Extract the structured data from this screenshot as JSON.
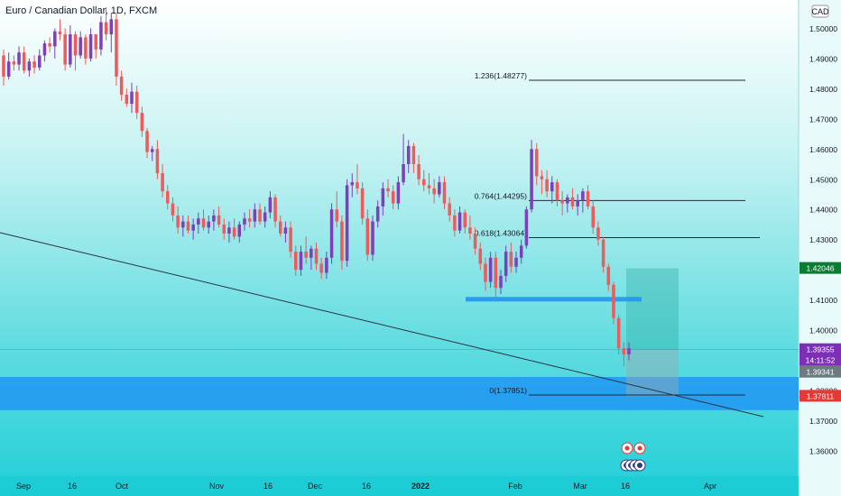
{
  "chart_data": {
    "type": "candlestick",
    "title": "Euro / Canadian Dollar, 1D, FXCM",
    "currency": "CAD",
    "ylim": [
      1.354,
      1.514
    ],
    "y_ticks": [
      "1.50000",
      "1.49000",
      "1.48000",
      "1.47000",
      "1.46000",
      "1.45000",
      "1.44000",
      "1.43000",
      "1.42000",
      "1.41000",
      "1.40000",
      "1.39000",
      "1.38000",
      "1.37000",
      "1.36000"
    ],
    "x_ticks": [
      "Sep",
      "16",
      "Oct",
      "Nov",
      "16",
      "Dec",
      "16",
      "2022",
      "Feb",
      "Mar",
      "16",
      "Apr"
    ],
    "price_labels": {
      "current": "1.39355",
      "countdown": "14:11:52",
      "prev": "1.39341",
      "high_marker": "1.42046",
      "low_marker": "1.37811"
    },
    "colors": {
      "up": "#7e3fb8",
      "down": "#ef5a5a",
      "accent_blue": "#2196f3"
    },
    "fib_levels": [
      {
        "label": "1.236(1.48277)",
        "value": 1.48277
      },
      {
        "label": "0.764(1.44295)",
        "value": 1.44295
      },
      {
        "label": "0.618(1.43064)",
        "value": 1.43064
      },
      {
        "label": "0(1.37851)",
        "value": 1.37851
      }
    ],
    "candles": [
      [
        1.491,
        1.493,
        1.481,
        1.484
      ],
      [
        1.484,
        1.492,
        1.483,
        1.489
      ],
      [
        1.489,
        1.491,
        1.486,
        1.488
      ],
      [
        1.488,
        1.494,
        1.486,
        1.492
      ],
      [
        1.492,
        1.494,
        1.485,
        1.486
      ],
      [
        1.486,
        1.49,
        1.484,
        1.489
      ],
      [
        1.489,
        1.491,
        1.485,
        1.487
      ],
      [
        1.487,
        1.493,
        1.486,
        1.491
      ],
      [
        1.491,
        1.496,
        1.489,
        1.495
      ],
      [
        1.495,
        1.497,
        1.492,
        1.494
      ],
      [
        1.494,
        1.5,
        1.49,
        1.499
      ],
      [
        1.499,
        1.503,
        1.496,
        1.498
      ],
      [
        1.498,
        1.5,
        1.486,
        1.488
      ],
      [
        1.488,
        1.501,
        1.487,
        1.498
      ],
      [
        1.498,
        1.499,
        1.486,
        1.491
      ],
      [
        1.491,
        1.499,
        1.49,
        1.497
      ],
      [
        1.497,
        1.498,
        1.488,
        1.49
      ],
      [
        1.49,
        1.5,
        1.489,
        1.498
      ],
      [
        1.498,
        1.498,
        1.49,
        1.493
      ],
      [
        1.493,
        1.504,
        1.491,
        1.502
      ],
      [
        1.502,
        1.507,
        1.496,
        1.498
      ],
      [
        1.498,
        1.505,
        1.492,
        1.503
      ],
      [
        1.503,
        1.505,
        1.481,
        1.484
      ],
      [
        1.484,
        1.486,
        1.476,
        1.478
      ],
      [
        1.478,
        1.48,
        1.474,
        1.475
      ],
      [
        1.475,
        1.482,
        1.472,
        1.479
      ],
      [
        1.479,
        1.481,
        1.47,
        1.472
      ],
      [
        1.472,
        1.474,
        1.464,
        1.466
      ],
      [
        1.466,
        1.467,
        1.457,
        1.459
      ],
      [
        1.459,
        1.461,
        1.456,
        1.46
      ],
      [
        1.46,
        1.463,
        1.45,
        1.452
      ],
      [
        1.452,
        1.455,
        1.444,
        1.446
      ],
      [
        1.446,
        1.448,
        1.44,
        1.442
      ],
      [
        1.442,
        1.444,
        1.436,
        1.438
      ],
      [
        1.438,
        1.441,
        1.432,
        1.434
      ],
      [
        1.434,
        1.438,
        1.431,
        1.436
      ],
      [
        1.436,
        1.438,
        1.432,
        1.433
      ],
      [
        1.433,
        1.437,
        1.43,
        1.435
      ],
      [
        1.435,
        1.439,
        1.432,
        1.437
      ],
      [
        1.437,
        1.44,
        1.433,
        1.434
      ],
      [
        1.434,
        1.438,
        1.432,
        1.436
      ],
      [
        1.436,
        1.44,
        1.433,
        1.438
      ],
      [
        1.438,
        1.441,
        1.434,
        1.435
      ],
      [
        1.435,
        1.437,
        1.43,
        1.432
      ],
      [
        1.432,
        1.436,
        1.429,
        1.434
      ],
      [
        1.434,
        1.437,
        1.43,
        1.431
      ],
      [
        1.431,
        1.436,
        1.429,
        1.435
      ],
      [
        1.435,
        1.439,
        1.433,
        1.437
      ],
      [
        1.437,
        1.44,
        1.434,
        1.436
      ],
      [
        1.436,
        1.442,
        1.434,
        1.44
      ],
      [
        1.44,
        1.442,
        1.435,
        1.436
      ],
      [
        1.436,
        1.441,
        1.434,
        1.439
      ],
      [
        1.439,
        1.446,
        1.437,
        1.444
      ],
      [
        1.444,
        1.445,
        1.434,
        1.436
      ],
      [
        1.436,
        1.438,
        1.431,
        1.432
      ],
      [
        1.432,
        1.436,
        1.429,
        1.434
      ],
      [
        1.434,
        1.436,
        1.424,
        1.426
      ],
      [
        1.426,
        1.428,
        1.418,
        1.42
      ],
      [
        1.42,
        1.428,
        1.418,
        1.426
      ],
      [
        1.426,
        1.431,
        1.422,
        1.424
      ],
      [
        1.424,
        1.428,
        1.42,
        1.427
      ],
      [
        1.427,
        1.429,
        1.42,
        1.422
      ],
      [
        1.422,
        1.424,
        1.417,
        1.419
      ],
      [
        1.419,
        1.426,
        1.417,
        1.424
      ],
      [
        1.424,
        1.442,
        1.422,
        1.44
      ],
      [
        1.44,
        1.446,
        1.434,
        1.436
      ],
      [
        1.436,
        1.438,
        1.42,
        1.423
      ],
      [
        1.423,
        1.45,
        1.421,
        1.448
      ],
      [
        1.448,
        1.452,
        1.444,
        1.449
      ],
      [
        1.449,
        1.455,
        1.445,
        1.447
      ],
      [
        1.447,
        1.449,
        1.435,
        1.437
      ],
      [
        1.437,
        1.44,
        1.423,
        1.425
      ],
      [
        1.425,
        1.438,
        1.423,
        1.436
      ],
      [
        1.436,
        1.443,
        1.434,
        1.441
      ],
      [
        1.441,
        1.449,
        1.438,
        1.447
      ],
      [
        1.447,
        1.45,
        1.444,
        1.446
      ],
      [
        1.446,
        1.448,
        1.44,
        1.442
      ],
      [
        1.442,
        1.451,
        1.44,
        1.449
      ],
      [
        1.449,
        1.465,
        1.448,
        1.455
      ],
      [
        1.455,
        1.463,
        1.452,
        1.461
      ],
      [
        1.461,
        1.462,
        1.452,
        1.455
      ],
      [
        1.455,
        1.458,
        1.448,
        1.45
      ],
      [
        1.45,
        1.453,
        1.446,
        1.448
      ],
      [
        1.448,
        1.452,
        1.445,
        1.447
      ],
      [
        1.447,
        1.45,
        1.442,
        1.445
      ],
      [
        1.445,
        1.451,
        1.444,
        1.449
      ],
      [
        1.449,
        1.451,
        1.44,
        1.442
      ],
      [
        1.442,
        1.444,
        1.436,
        1.438
      ],
      [
        1.438,
        1.44,
        1.431,
        1.433
      ],
      [
        1.433,
        1.441,
        1.432,
        1.439
      ],
      [
        1.439,
        1.44,
        1.432,
        1.434
      ],
      [
        1.434,
        1.438,
        1.43,
        1.432
      ],
      [
        1.432,
        1.434,
        1.425,
        1.427
      ],
      [
        1.427,
        1.429,
        1.42,
        1.422
      ],
      [
        1.422,
        1.424,
        1.413,
        1.416
      ],
      [
        1.416,
        1.426,
        1.414,
        1.424
      ],
      [
        1.424,
        1.426,
        1.411,
        1.414
      ],
      [
        1.414,
        1.42,
        1.412,
        1.418
      ],
      [
        1.418,
        1.428,
        1.416,
        1.426
      ],
      [
        1.426,
        1.429,
        1.419,
        1.421
      ],
      [
        1.421,
        1.426,
        1.419,
        1.424
      ],
      [
        1.424,
        1.43,
        1.422,
        1.428
      ],
      [
        1.428,
        1.441,
        1.427,
        1.44
      ],
      [
        1.44,
        1.463,
        1.439,
        1.46
      ],
      [
        1.46,
        1.462,
        1.448,
        1.451
      ],
      [
        1.451,
        1.453,
        1.445,
        1.45
      ],
      [
        1.45,
        1.453,
        1.444,
        1.446
      ],
      [
        1.446,
        1.451,
        1.442,
        1.449
      ],
      [
        1.449,
        1.45,
        1.441,
        1.443
      ],
      [
        1.443,
        1.446,
        1.438,
        1.442
      ],
      [
        1.442,
        1.445,
        1.439,
        1.444
      ],
      [
        1.444,
        1.447,
        1.44,
        1.441
      ],
      [
        1.441,
        1.445,
        1.438,
        1.443
      ],
      [
        1.443,
        1.447,
        1.439,
        1.446
      ],
      [
        1.446,
        1.448,
        1.44,
        1.441
      ],
      [
        1.441,
        1.443,
        1.432,
        1.434
      ],
      [
        1.434,
        1.436,
        1.428,
        1.43
      ],
      [
        1.43,
        1.431,
        1.419,
        1.421
      ],
      [
        1.421,
        1.422,
        1.413,
        1.415
      ],
      [
        1.415,
        1.416,
        1.402,
        1.404
      ],
      [
        1.404,
        1.405,
        1.392,
        1.394
      ],
      [
        1.394,
        1.396,
        1.388,
        1.392
      ],
      [
        1.392,
        1.396,
        1.39,
        1.394
      ]
    ]
  }
}
